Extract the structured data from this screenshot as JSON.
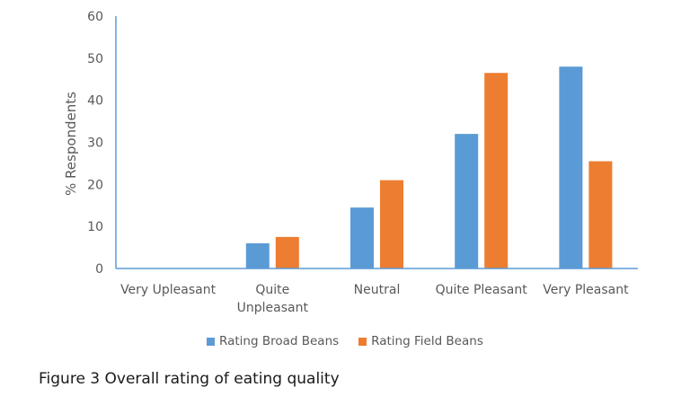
{
  "chart_data": {
    "type": "bar",
    "categories": [
      "Very Upleasant",
      "Quite Unpleasant",
      "Neutral",
      "Quite Pleasant",
      "Very Pleasant"
    ],
    "series": [
      {
        "name": "Rating Broad Beans",
        "color": "#5b9bd5",
        "values": [
          0,
          6,
          14.5,
          32,
          48
        ]
      },
      {
        "name": "Rating Field Beans",
        "color": "#ed7d31",
        "values": [
          0,
          7.5,
          21,
          46.5,
          25.5
        ]
      }
    ],
    "ylabel": "% Respondents",
    "ylim": [
      0,
      60
    ],
    "yticks": [
      0,
      10,
      20,
      30,
      40,
      50,
      60
    ],
    "grid": false,
    "legend": "bottom"
  },
  "caption": "Figure 3 Overall rating of eating quality"
}
